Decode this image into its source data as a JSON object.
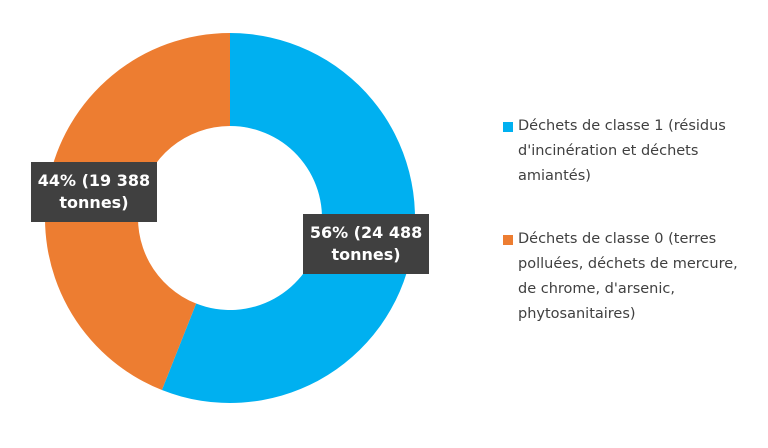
{
  "chart_data": {
    "type": "donut",
    "categories": [
      "Déchets de classe 1 (résidus d'incinération et déchets amiantés)",
      "Déchets de classe 0 (terres polluées, déchets de mercure, de chrome, d'arsenic, phytosanitaires)"
    ],
    "values": [
      56,
      44
    ],
    "value_labels": [
      "56% (24 488 tonnes)",
      "44% (19 388 tonnes)"
    ],
    "colors": [
      "#00b0f0",
      "#ed7d31"
    ],
    "legend": "right"
  }
}
